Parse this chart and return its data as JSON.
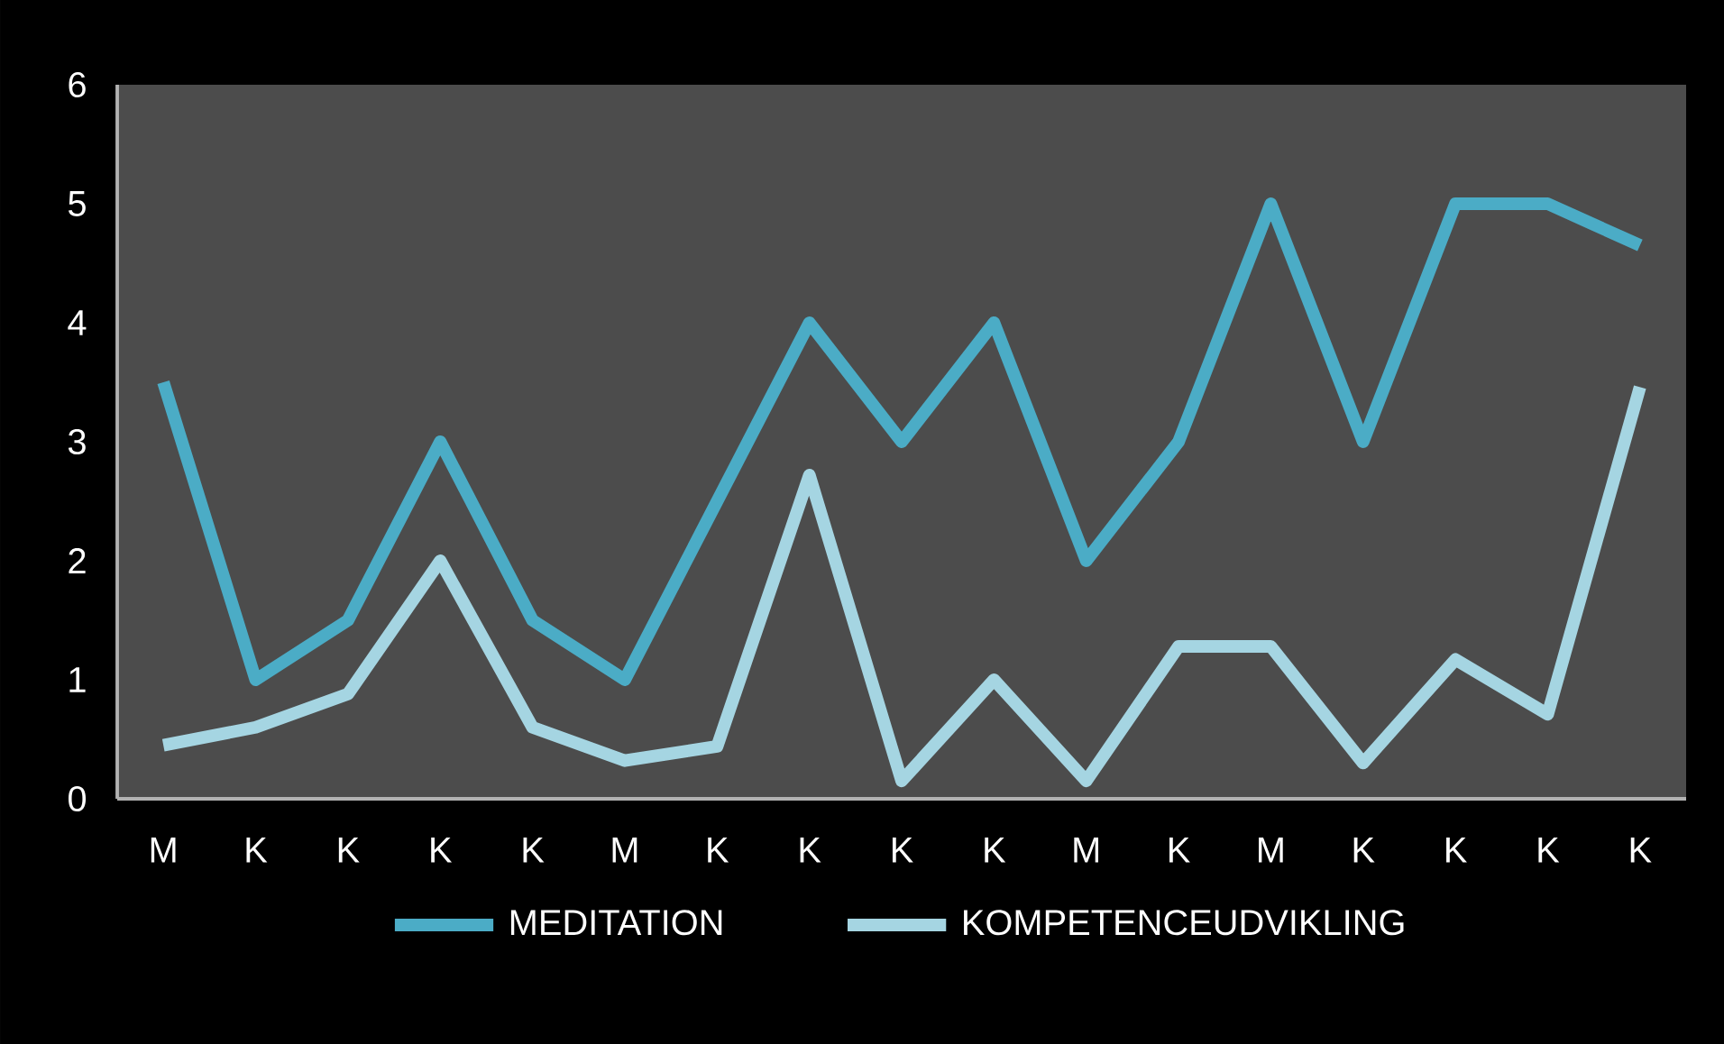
{
  "chart_data": {
    "type": "line",
    "categories": [
      "M",
      "K",
      "K",
      "K",
      "K",
      "M",
      "K",
      "K",
      "K",
      "K",
      "M",
      "K",
      "M",
      "K",
      "K",
      "K",
      "K"
    ],
    "series": [
      {
        "name": "MEDITATION",
        "color": "#4bacc6",
        "values": [
          3.5,
          1,
          1.5,
          3,
          1.5,
          1,
          2.5,
          4,
          3,
          4,
          2,
          3,
          5,
          3,
          5,
          5,
          4.65
        ]
      },
      {
        "name": "KOMPETENCEUDVIKLING",
        "color": "#a5d5e2",
        "values": [
          0.45,
          0.6,
          0.88,
          2.0,
          0.6,
          0.32,
          0.44,
          2.72,
          0.15,
          1.0,
          0.15,
          1.28,
          1.28,
          0.3,
          1.17,
          0.71,
          3.46
        ]
      }
    ],
    "ylim": [
      0,
      6
    ],
    "yticks": [
      0,
      1,
      2,
      3,
      4,
      5,
      6
    ],
    "legend": "bottom"
  }
}
